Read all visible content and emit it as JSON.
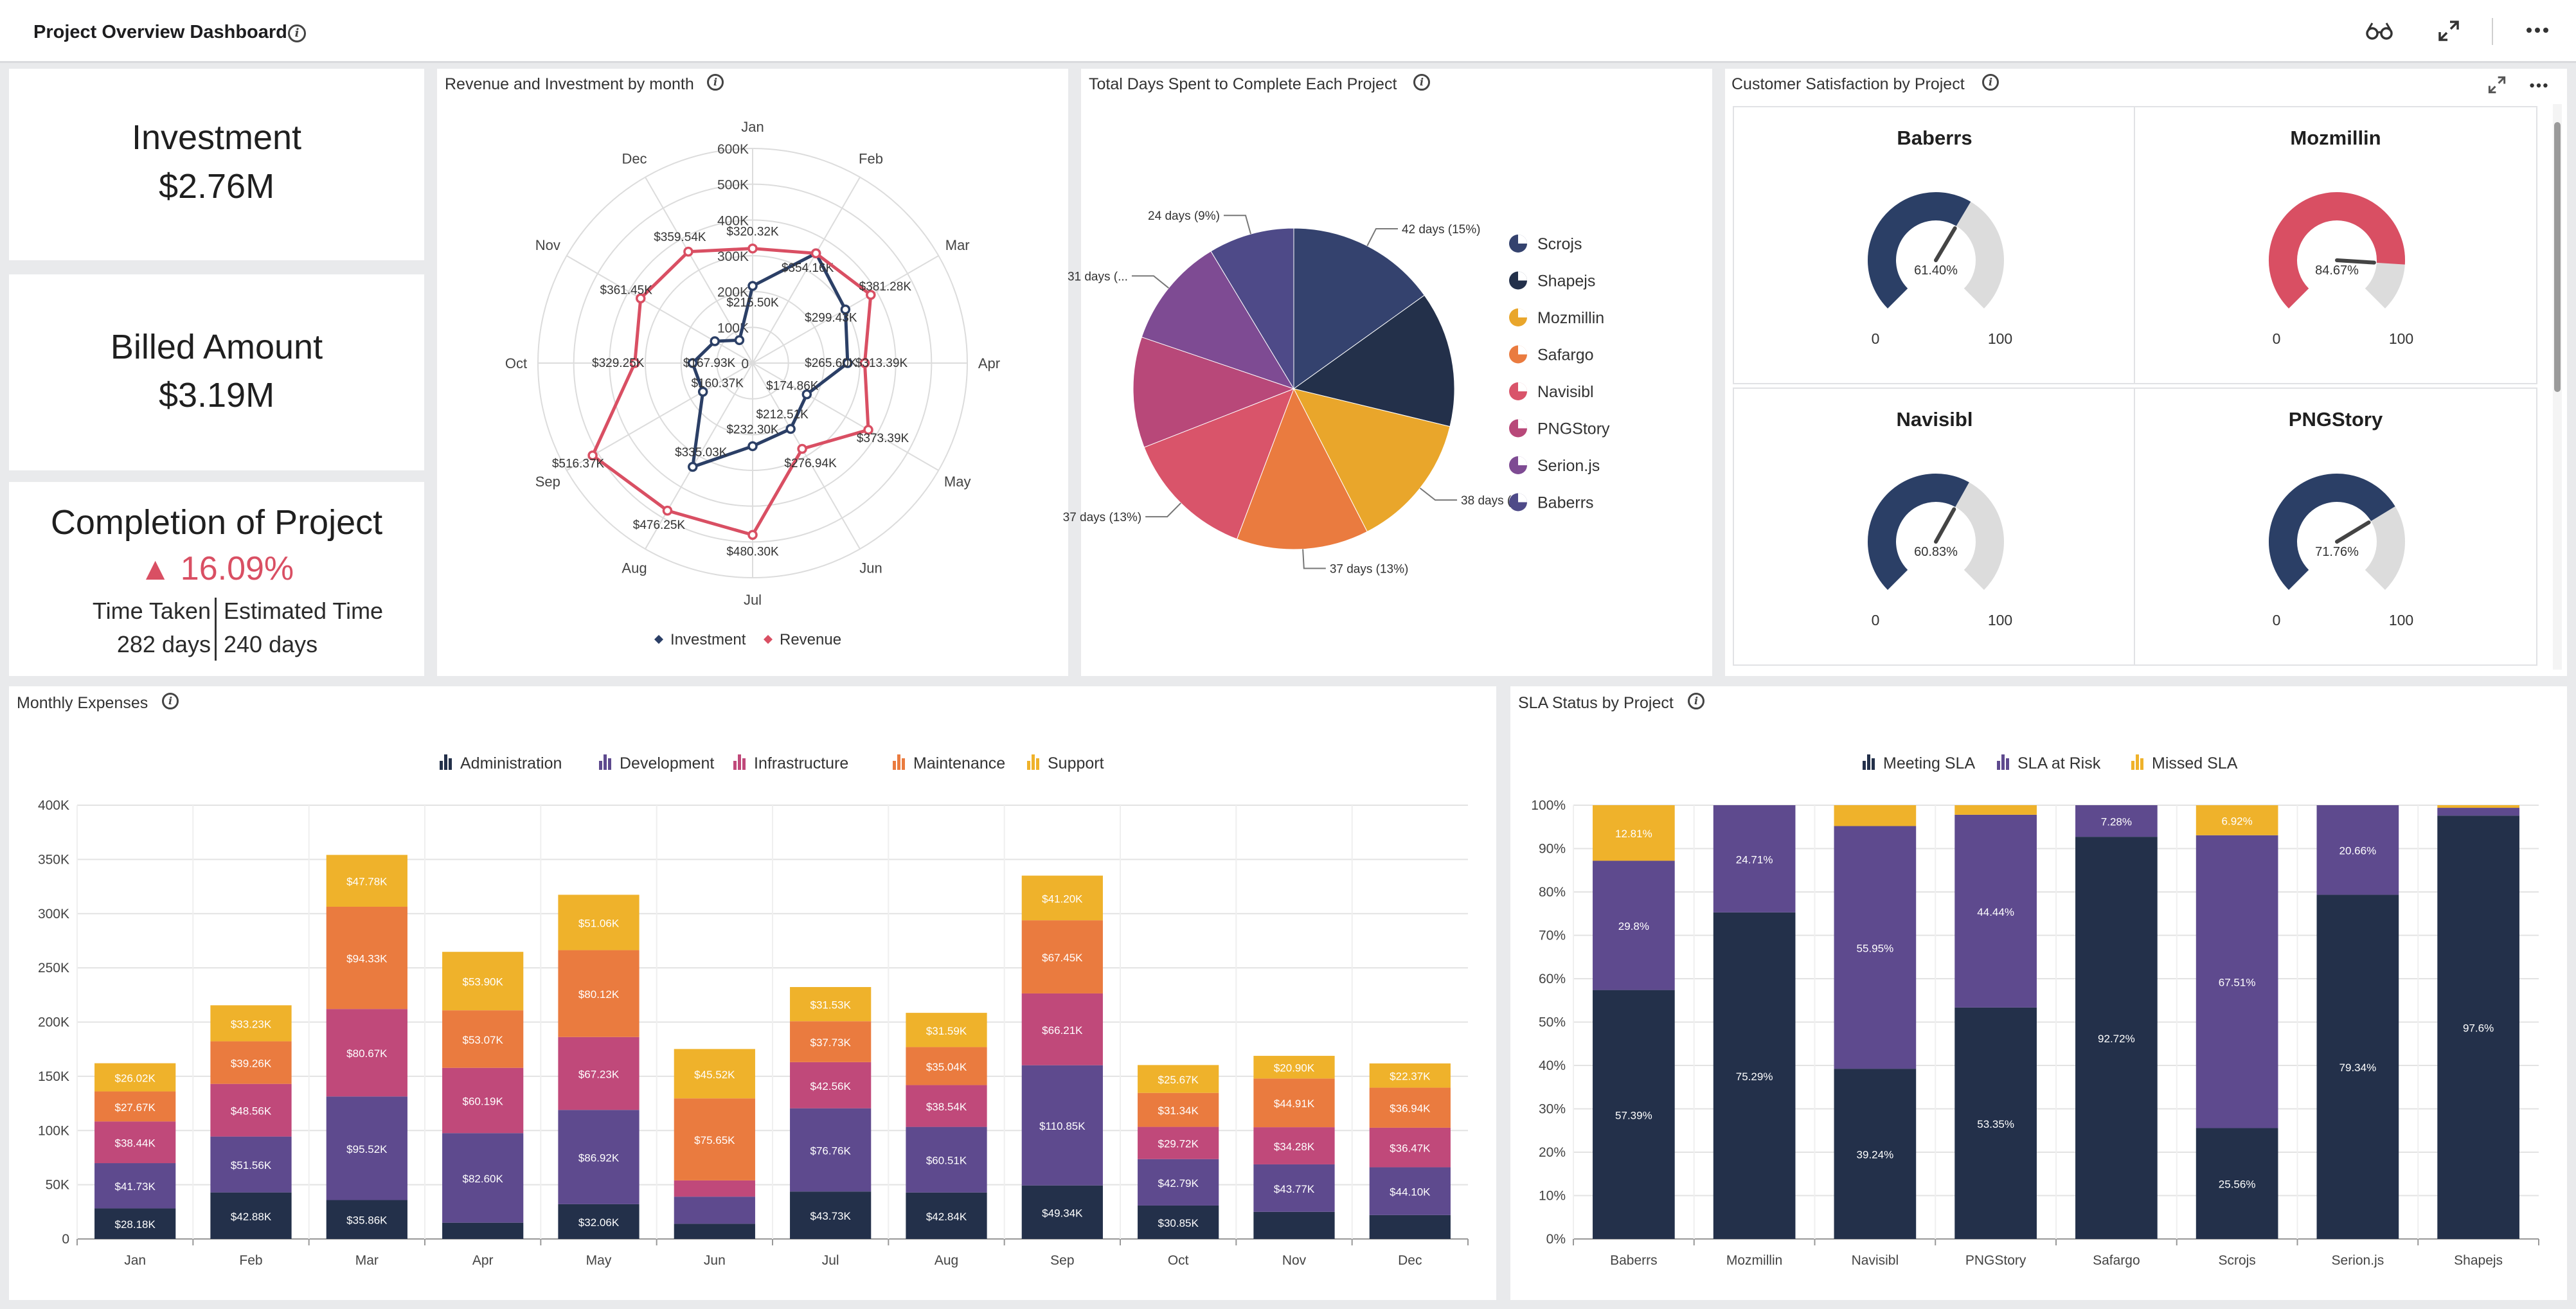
{
  "header": {
    "title": "Project Overview Dashboard"
  },
  "kpis": {
    "investment": {
      "label": "Investment",
      "value": "$2.76M"
    },
    "billed": {
      "label": "Billed Amount",
      "value": "$3.19M"
    },
    "completion": {
      "label": "Completion of Project",
      "delta": "16.09%",
      "time_taken_label": "Time Taken",
      "time_taken_value": "282 days",
      "estimated_label": "Estimated Time",
      "estimated_value": "240 days"
    }
  },
  "colors": {
    "investment": "#2b3f66",
    "revenue": "#d94f63",
    "administration": "#23304a",
    "development": "#5e4a8e",
    "infrastructure": "#c0497a",
    "maintenance": "#ea7b3f",
    "support": "#efb22b",
    "meeting": "#23304a",
    "at_risk": "#5e4a8e",
    "missed": "#efb22b",
    "gauge_blue": "#2b3f66",
    "gauge_red": "#d94f63",
    "gauge_track": "#dcdcdc",
    "delta_up": "#d94f63"
  },
  "panels": {
    "radar_title": "Revenue and Investment by month",
    "pie_title": "Total Days Spent to Complete Each Project",
    "gauges_title": "Customer Satisfaction by Project",
    "expenses_title": "Monthly Expenses",
    "sla_title": "SLA Status by Project"
  },
  "chart_data": [
    {
      "type": "radar",
      "title": "Revenue and Investment by month",
      "categories": [
        "Jan",
        "Feb",
        "Mar",
        "Apr",
        "May",
        "Jun",
        "Jul",
        "Aug",
        "Sep",
        "Oct",
        "Nov",
        "Dec"
      ],
      "radial_ticks": [
        "0",
        "100K",
        "200K",
        "300K",
        "400K",
        "500K",
        "600K"
      ],
      "rmax": 600,
      "legend": [
        "Investment",
        "Revenue"
      ],
      "series": [
        {
          "name": "Investment",
          "values": [
            215.5,
            354.16,
            299.43,
            265.6,
            174.86,
            212.51,
            232.3,
            335.03,
            160.37,
            167.93,
            122,
            74
          ],
          "labels": [
            "$215.50K",
            "$354.16K",
            "$299.43K",
            "$265.60K",
            "$174.86K",
            "$212.51K",
            "$232.30K",
            "$335.03K",
            "$160.37K",
            "$167.93K",
            "",
            ""
          ]
        },
        {
          "name": "Revenue",
          "values": [
            320.32,
            354.16,
            381.28,
            313.39,
            373.39,
            276.94,
            480.3,
            476.25,
            516.37,
            329.25,
            361.45,
            359.54
          ],
          "labels": [
            "$320.32K",
            "",
            "$381.28K",
            "$313.39K",
            "$373.39K",
            "$276.94K",
            "$480.30K",
            "$476.25K",
            "$516.37K",
            "$329.25K",
            "$361.45K",
            "$359.54K"
          ]
        }
      ]
    },
    {
      "type": "pie",
      "title": "Total Days Spent to Complete Each Project",
      "categories": [
        "Scrojs",
        "Shapejs",
        "Mozmillin",
        "Safargo",
        "Navisibl",
        "PNGStory",
        "Serion.js",
        "Baberrs"
      ],
      "values": [
        42,
        38,
        38,
        37,
        37,
        31,
        31,
        24
      ],
      "labels": [
        "42 days (15%)",
        "",
        "38 days (...",
        "37 days (13%)",
        "37 days (13%)",
        "",
        "31 days (...",
        "24 days (9%)"
      ],
      "colors": [
        "#34426e",
        "#23304a",
        "#e9a62b",
        "#ea7b3f",
        "#d9546a",
        "#b84879",
        "#7e4b93",
        "#4e4a88"
      ]
    },
    {
      "type": "gauge",
      "title": "Customer Satisfaction by Project",
      "min_label": "0",
      "max_label": "100",
      "items": [
        {
          "name": "Baberrs",
          "value": 61.4,
          "label": "61.40%"
        },
        {
          "name": "Mozmillin",
          "value": 84.67,
          "label": "84.67%"
        },
        {
          "name": "Navisibl",
          "value": 60.83,
          "label": "60.83%"
        },
        {
          "name": "PNGStory",
          "value": 71.76,
          "label": "71.76%"
        }
      ]
    },
    {
      "type": "bar",
      "stacked": true,
      "title": "Monthly Expenses",
      "categories": [
        "Jan",
        "Feb",
        "Mar",
        "Apr",
        "May",
        "Jun",
        "Jul",
        "Aug",
        "Sep",
        "Oct",
        "Nov",
        "Dec"
      ],
      "yticks": [
        "0",
        "50K",
        "100K",
        "150K",
        "200K",
        "250K",
        "300K",
        "350K",
        "400K"
      ],
      "ylim": [
        0,
        400
      ],
      "grid": true,
      "legend_position": "top",
      "series": [
        {
          "name": "Administration",
          "values": [
            28.18,
            42.88,
            35.86,
            15,
            32.06,
            14,
            43.73,
            42.84,
            49.34,
            30.85,
            25,
            22
          ],
          "labels": [
            "$28.18K",
            "$42.88K",
            "$35.86K",
            "",
            "$32.06K",
            "",
            "$43.73K",
            "$42.84K",
            "$49.34K",
            "$30.85K",
            "",
            ""
          ]
        },
        {
          "name": "Development",
          "values": [
            41.73,
            51.56,
            95.52,
            82.6,
            86.92,
            25,
            76.76,
            60.51,
            110.85,
            42.79,
            43.77,
            44.1
          ],
          "labels": [
            "$41.73K",
            "$51.56K",
            "$95.52K",
            "$82.60K",
            "$86.92K",
            "",
            "$76.76K",
            "$60.51K",
            "$110.85K",
            "$42.79K",
            "$43.77K",
            "$44.10K"
          ]
        },
        {
          "name": "Infrastructure",
          "values": [
            38.44,
            48.56,
            80.67,
            60.19,
            67.23,
            15,
            42.56,
            38.54,
            66.21,
            29.72,
            34.28,
            36.47
          ],
          "labels": [
            "$38.44K",
            "$48.56K",
            "$80.67K",
            "$60.19K",
            "$67.23K",
            "",
            "$42.56K",
            "$38.54K",
            "$66.21K",
            "$29.72K",
            "$34.28K",
            "$36.47K"
          ]
        },
        {
          "name": "Maintenance",
          "values": [
            27.67,
            39.26,
            94.33,
            53.07,
            80.12,
            75.65,
            37.73,
            35.04,
            67.45,
            31.34,
            44.91,
            36.94
          ],
          "labels": [
            "$27.67K",
            "$39.26K",
            "$94.33K",
            "$53.07K",
            "$80.12K",
            "$75.65K",
            "$37.73K",
            "$35.04K",
            "$67.45K",
            "$31.34K",
            "$44.91K",
            "$36.94K"
          ]
        },
        {
          "name": "Support",
          "values": [
            26.02,
            33.23,
            47.78,
            53.9,
            51.06,
            45.52,
            31.53,
            31.59,
            41.2,
            25.67,
            20.9,
            22.37
          ],
          "labels": [
            "$26.02K",
            "$33.23K",
            "$47.78K",
            "$53.90K",
            "$51.06K",
            "$45.52K",
            "$31.53K",
            "$31.59K",
            "$41.20K",
            "$25.67K",
            "$20.90K",
            "$22.37K"
          ]
        }
      ]
    },
    {
      "type": "bar",
      "stacked": true,
      "percent": true,
      "title": "SLA Status by Project",
      "categories": [
        "Baberrs",
        "Mozmillin",
        "Navisibl",
        "PNGStory",
        "Safargo",
        "Scrojs",
        "Serion.js",
        "Shapejs"
      ],
      "yticks": [
        "0%",
        "10%",
        "20%",
        "30%",
        "40%",
        "50%",
        "60%",
        "70%",
        "80%",
        "90%",
        "100%"
      ],
      "ylim": [
        0,
        100
      ],
      "grid": true,
      "legend_position": "top",
      "series": [
        {
          "name": "Meeting SLA",
          "values": [
            57.39,
            75.29,
            39.24,
            53.35,
            92.72,
            25.56,
            79.34,
            97.6
          ],
          "labels": [
            "57.39%",
            "75.29%",
            "39.24%",
            "53.35%",
            "92.72%",
            "25.56%",
            "79.34%",
            "97.6%"
          ]
        },
        {
          "name": "SLA at Risk",
          "values": [
            29.8,
            24.71,
            55.95,
            44.44,
            7.28,
            67.51,
            20.66,
            1.8
          ],
          "labels": [
            "29.8%",
            "24.71%",
            "55.95%",
            "44.44%",
            "7.28%",
            "67.51%",
            "20.66%",
            ""
          ]
        },
        {
          "name": "Missed SLA",
          "values": [
            12.81,
            0,
            4.81,
            2.21,
            0,
            6.92,
            0,
            0.6
          ],
          "labels": [
            "12.81%",
            "",
            "",
            "",
            "",
            "6.92%",
            "",
            ""
          ]
        }
      ]
    }
  ]
}
